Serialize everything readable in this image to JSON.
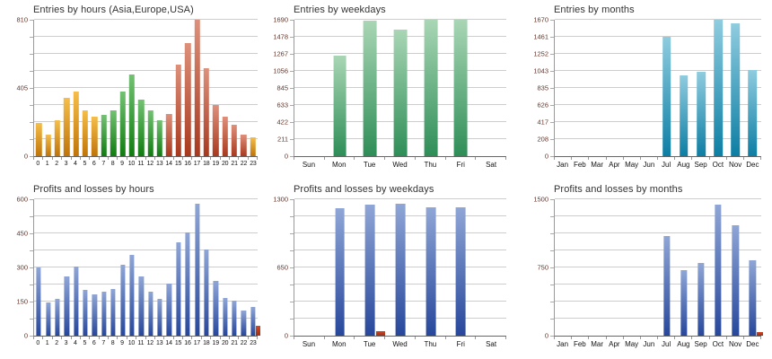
{
  "theme": {
    "background": "#ffffff",
    "grid_color": "#cdcdcd",
    "axis_color": "#999999",
    "y_label_color": "#6b3324",
    "x_label_color": "#111111",
    "title_color": "#333333"
  },
  "chart_data": [
    {
      "id": "entries-by-hours",
      "type": "bar",
      "title": "Entries by hours (Asia,Europe,USA)",
      "xlabel": "",
      "ylabel": "",
      "ylim": [
        0,
        810
      ],
      "grid_intervals": 8,
      "legend": "none",
      "yticks": [
        "810",
        "405",
        "0"
      ],
      "categories": [
        "0",
        "1",
        "2",
        "3",
        "4",
        "5",
        "6",
        "7",
        "8",
        "9",
        "10",
        "11",
        "12",
        "13",
        "14",
        "15",
        "16",
        "17",
        "18",
        "19",
        "20",
        "21",
        "22",
        "23"
      ],
      "bar_width_pct": 62,
      "series": [
        {
          "name": "asia",
          "color_top": "#F5BE4B",
          "color_bottom": "#C07408",
          "values": [
            195,
            130,
            215,
            345,
            385,
            270,
            235,
            0,
            0,
            0,
            0,
            0,
            0,
            0,
            0,
            0,
            0,
            0,
            0,
            0,
            0,
            0,
            0,
            110
          ]
        },
        {
          "name": "europe",
          "color_top": "#73C273",
          "color_bottom": "#107C10",
          "values": [
            0,
            0,
            0,
            0,
            0,
            0,
            0,
            245,
            270,
            385,
            485,
            335,
            270,
            215,
            0,
            0,
            0,
            0,
            0,
            0,
            0,
            0,
            0,
            0
          ]
        },
        {
          "name": "usa",
          "color_top": "#DE907B",
          "color_bottom": "#A8391E",
          "values": [
            0,
            0,
            0,
            0,
            0,
            0,
            0,
            0,
            0,
            0,
            0,
            0,
            0,
            0,
            250,
            545,
            670,
            810,
            520,
            305,
            235,
            185,
            130,
            0
          ]
        }
      ]
    },
    {
      "id": "entries-by-weekdays",
      "type": "bar",
      "title": "Entries by weekdays",
      "xlabel": "",
      "ylabel": "",
      "ylim": [
        0,
        1690
      ],
      "grid_intervals": 8,
      "legend": "none",
      "yticks": [
        "1690",
        "1478",
        "1267",
        "1056",
        "845",
        "633",
        "422",
        "211",
        "0"
      ],
      "categories": [
        "Sun",
        "Mon",
        "Tue",
        "Wed",
        "Thu",
        "Fri",
        "Sat"
      ],
      "bar_width_pct": 44,
      "series": [
        {
          "name": "entries",
          "color_top": "#A9D6B5",
          "color_bottom": "#2E8E57",
          "values": [
            0,
            1240,
            1675,
            1570,
            1690,
            1690,
            0
          ]
        }
      ]
    },
    {
      "id": "entries-by-months",
      "type": "bar",
      "title": "Entries by months",
      "xlabel": "",
      "ylabel": "",
      "ylim": [
        0,
        1670
      ],
      "grid_intervals": 8,
      "legend": "none",
      "yticks": [
        "1670",
        "1461",
        "1252",
        "1043",
        "835",
        "626",
        "417",
        "208",
        "0"
      ],
      "categories": [
        "Jan",
        "Feb",
        "Mar",
        "Apr",
        "May",
        "Jun",
        "Jul",
        "Aug",
        "Sep",
        "Oct",
        "Nov",
        "Dec"
      ],
      "bar_width_pct": 50,
      "series": [
        {
          "name": "entries",
          "color_top": "#8FCCDF",
          "color_bottom": "#0D7EA4",
          "values": [
            0,
            0,
            0,
            0,
            0,
            0,
            1460,
            990,
            1030,
            1670,
            1630,
            1060
          ]
        }
      ]
    },
    {
      "id": "profits-losses-by-hours",
      "type": "bar",
      "title": "Profits and losses by hours",
      "xlabel": "",
      "ylabel": "",
      "ylim": [
        0,
        600
      ],
      "grid_intervals": 8,
      "legend": "none",
      "yticks": [
        "600",
        "450",
        "300",
        "150",
        "0"
      ],
      "categories": [
        "0",
        "1",
        "2",
        "3",
        "4",
        "5",
        "6",
        "7",
        "8",
        "9",
        "10",
        "11",
        "12",
        "13",
        "14",
        "15",
        "16",
        "17",
        "18",
        "19",
        "20",
        "21",
        "22",
        "23"
      ],
      "bar_width_pct": 50,
      "series": [
        {
          "name": "profit",
          "color_top": "#8FA6D6",
          "color_bottom": "#27479B",
          "values": [
            300,
            145,
            160,
            260,
            305,
            200,
            180,
            195,
            205,
            310,
            355,
            260,
            195,
            160,
            230,
            410,
            455,
            580,
            380,
            240,
            165,
            155,
            110,
            125
          ]
        },
        {
          "name": "loss",
          "color_top": "#CC4A2B",
          "color_bottom": "#9E2F16",
          "values": [
            0,
            0,
            0,
            0,
            0,
            0,
            0,
            0,
            0,
            0,
            0,
            0,
            0,
            0,
            0,
            0,
            0,
            0,
            0,
            0,
            0,
            0,
            0,
            45
          ]
        }
      ]
    },
    {
      "id": "profits-losses-by-weekdays",
      "type": "bar",
      "title": "Profits and losses by weekdays",
      "xlabel": "",
      "ylabel": "",
      "ylim": [
        0,
        1300
      ],
      "grid_intervals": 8,
      "legend": "none",
      "yticks": [
        "1300",
        "650",
        "0"
      ],
      "categories": [
        "Sun",
        "Mon",
        "Tue",
        "Wed",
        "Thu",
        "Fri",
        "Sat"
      ],
      "bar_width_pct": 32,
      "series": [
        {
          "name": "profit",
          "color_top": "#8FA6D6",
          "color_bottom": "#27479B",
          "values": [
            0,
            1215,
            1245,
            1260,
            1220,
            1225,
            0
          ]
        },
        {
          "name": "loss",
          "color_top": "#CC4A2B",
          "color_bottom": "#9E2F16",
          "values": [
            0,
            0,
            45,
            0,
            0,
            0,
            0
          ]
        }
      ]
    },
    {
      "id": "profits-losses-by-months",
      "type": "bar",
      "title": "Profits and losses by months",
      "xlabel": "",
      "ylabel": "",
      "ylim": [
        0,
        1500
      ],
      "grid_intervals": 8,
      "legend": "none",
      "yticks": [
        "1500",
        "750",
        "0"
      ],
      "categories": [
        "Jan",
        "Feb",
        "Mar",
        "Apr",
        "May",
        "Jun",
        "Jul",
        "Aug",
        "Sep",
        "Oct",
        "Nov",
        "Dec"
      ],
      "bar_width_pct": 38,
      "series": [
        {
          "name": "profit",
          "color_top": "#8FA6D6",
          "color_bottom": "#27479B",
          "values": [
            0,
            0,
            0,
            0,
            0,
            0,
            1100,
            725,
            800,
            1440,
            1215,
            825
          ]
        },
        {
          "name": "loss",
          "color_top": "#CC4A2B",
          "color_bottom": "#9E2F16",
          "values": [
            0,
            0,
            0,
            0,
            0,
            0,
            0,
            0,
            0,
            0,
            0,
            40
          ]
        }
      ]
    }
  ]
}
